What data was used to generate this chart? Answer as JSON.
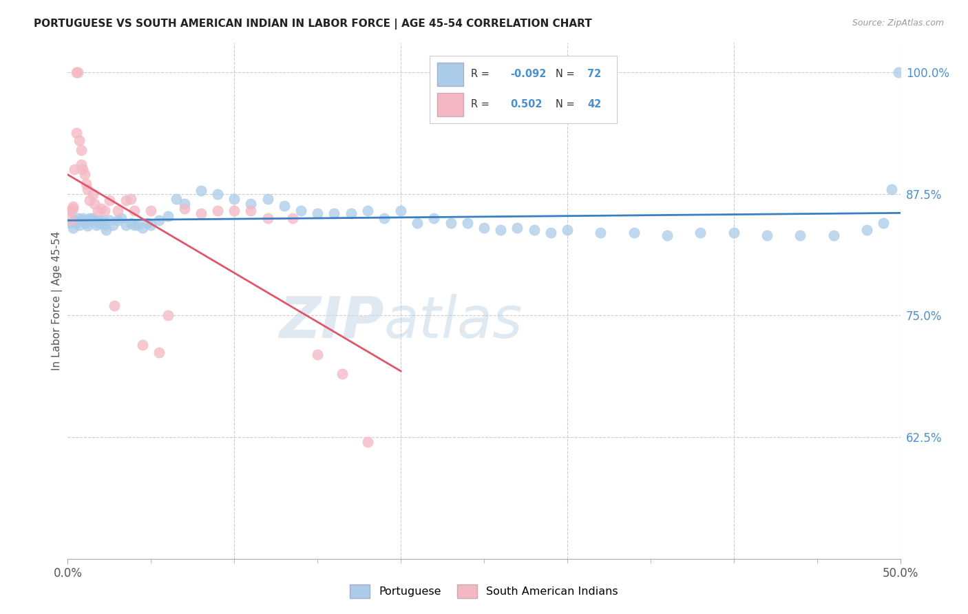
{
  "title": "PORTUGUESE VS SOUTH AMERICAN INDIAN IN LABOR FORCE | AGE 45-54 CORRELATION CHART",
  "source": "Source: ZipAtlas.com",
  "ylabel": "In Labor Force | Age 45-54",
  "xlim": [
    0.0,
    0.5
  ],
  "ylim": [
    0.5,
    1.03
  ],
  "yticks_right": [
    0.625,
    0.75,
    0.875,
    1.0
  ],
  "yticklabels_right": [
    "62.5%",
    "75.0%",
    "87.5%",
    "100.0%"
  ],
  "blue_color": "#aacce8",
  "pink_color": "#f4b8c4",
  "blue_line_color": "#3a7fc1",
  "pink_line_color": "#e0556a",
  "legend_label_blue": "Portuguese",
  "legend_label_pink": "South American Indians",
  "watermark_zip": "ZIP",
  "watermark_atlas": "atlas",
  "background_color": "#ffffff",
  "grid_color": "#cccccc",
  "axis_label_color": "#4a90d0",
  "blue_R": -0.092,
  "blue_N": 72,
  "pink_R": 0.502,
  "pink_N": 42,
  "blue_x": [
    0.002,
    0.003,
    0.004,
    0.005,
    0.006,
    0.007,
    0.008,
    0.009,
    0.01,
    0.011,
    0.012,
    0.013,
    0.014,
    0.015,
    0.016,
    0.017,
    0.018,
    0.019,
    0.02,
    0.021,
    0.022,
    0.023,
    0.025,
    0.027,
    0.03,
    0.032,
    0.035,
    0.038,
    0.04,
    0.042,
    0.045,
    0.048,
    0.05,
    0.055,
    0.06,
    0.065,
    0.07,
    0.08,
    0.09,
    0.1,
    0.11,
    0.12,
    0.13,
    0.14,
    0.15,
    0.16,
    0.17,
    0.18,
    0.19,
    0.2,
    0.21,
    0.22,
    0.23,
    0.24,
    0.25,
    0.26,
    0.27,
    0.28,
    0.29,
    0.3,
    0.32,
    0.34,
    0.36,
    0.38,
    0.4,
    0.42,
    0.44,
    0.46,
    0.48,
    0.49,
    0.495,
    0.499
  ],
  "blue_y": [
    0.845,
    0.84,
    0.848,
    0.845,
    0.85,
    0.843,
    0.848,
    0.85,
    0.848,
    0.845,
    0.842,
    0.85,
    0.848,
    0.85,
    0.848,
    0.843,
    0.845,
    0.848,
    0.845,
    0.848,
    0.843,
    0.838,
    0.848,
    0.843,
    0.848,
    0.85,
    0.843,
    0.845,
    0.843,
    0.843,
    0.84,
    0.845,
    0.843,
    0.848,
    0.852,
    0.87,
    0.865,
    0.878,
    0.875,
    0.87,
    0.865,
    0.87,
    0.863,
    0.858,
    0.855,
    0.855,
    0.855,
    0.858,
    0.85,
    0.858,
    0.845,
    0.85,
    0.845,
    0.845,
    0.84,
    0.838,
    0.84,
    0.838,
    0.835,
    0.838,
    0.835,
    0.835,
    0.832,
    0.835,
    0.835,
    0.832,
    0.832,
    0.832,
    0.838,
    0.845,
    0.88,
    1.0
  ],
  "pink_x": [
    0.001,
    0.002,
    0.002,
    0.003,
    0.003,
    0.004,
    0.005,
    0.005,
    0.006,
    0.007,
    0.008,
    0.008,
    0.009,
    0.01,
    0.011,
    0.012,
    0.013,
    0.015,
    0.016,
    0.018,
    0.02,
    0.022,
    0.025,
    0.028,
    0.03,
    0.035,
    0.038,
    0.04,
    0.045,
    0.05,
    0.055,
    0.06,
    0.07,
    0.08,
    0.09,
    0.1,
    0.11,
    0.12,
    0.135,
    0.15,
    0.165,
    0.18
  ],
  "pink_y": [
    0.858,
    0.858,
    0.848,
    0.862,
    0.86,
    0.9,
    0.938,
    1.0,
    1.0,
    0.93,
    0.92,
    0.905,
    0.9,
    0.895,
    0.885,
    0.88,
    0.868,
    0.875,
    0.865,
    0.858,
    0.86,
    0.858,
    0.868,
    0.76,
    0.858,
    0.868,
    0.87,
    0.858,
    0.72,
    0.858,
    0.712,
    0.75,
    0.86,
    0.855,
    0.858,
    0.858,
    0.858,
    0.85,
    0.85,
    0.71,
    0.69,
    0.62
  ]
}
